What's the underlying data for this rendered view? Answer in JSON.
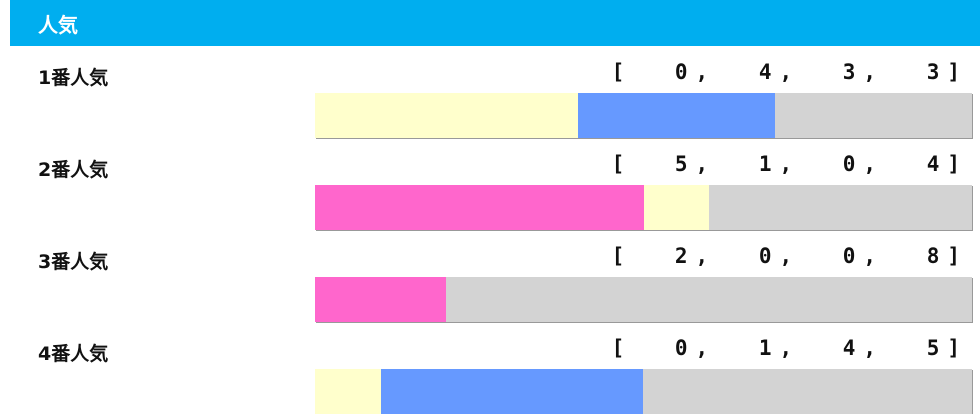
{
  "header": {
    "title": "人気"
  },
  "colors": {
    "header": "#00aeef",
    "first": "#ff66cc",
    "second": "#ffffcc",
    "third": "#6699ff",
    "other": "#d3d3d3"
  },
  "chart_data": {
    "type": "bar",
    "stacked": true,
    "orientation": "horizontal",
    "categories": [
      "1番人気",
      "2番人気",
      "3番人気",
      "4番人気"
    ],
    "series": [
      {
        "values": [
          0,
          5,
          2,
          0
        ]
      },
      {
        "values": [
          4,
          1,
          0,
          1
        ]
      },
      {
        "values": [
          3,
          0,
          0,
          4
        ]
      },
      {
        "values": [
          3,
          4,
          8,
          5
        ]
      }
    ],
    "records": [
      "[ 0, 4, 3, 3]",
      "[ 5, 1, 0, 4]",
      "[ 2, 0, 0, 8]",
      "[ 0, 1, 4, 5]"
    ]
  }
}
